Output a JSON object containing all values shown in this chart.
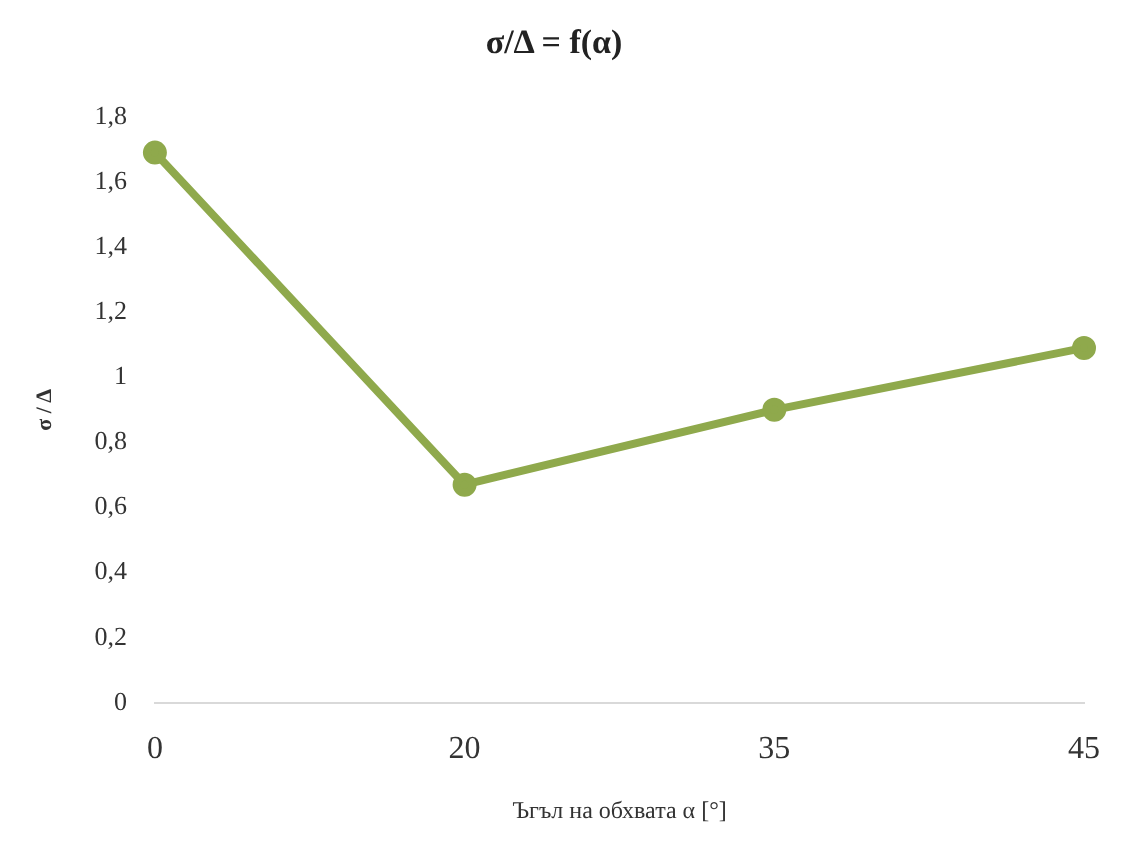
{
  "chart_data": {
    "type": "line",
    "title": "σ/Δ = f(α)",
    "xlabel": "Ъгъл на обхвата α [°]",
    "ylabel": "σ / Δ",
    "categories": [
      "0",
      "20",
      "35",
      "45"
    ],
    "series": [
      {
        "color": "#8fa94c",
        "values": [
          1.69,
          0.67,
          0.9,
          1.09
        ]
      }
    ],
    "ylim": [
      0,
      1.8
    ],
    "yticks": [
      0,
      {
        "value": 0.2,
        "label": "0,2"
      },
      {
        "value": 0.4,
        "label": "0,4"
      },
      {
        "value": 0.6,
        "label": "0,6"
      },
      {
        "value": 0.8,
        "label": "0,8"
      },
      1,
      {
        "value": 1.2,
        "label": "1,2"
      },
      {
        "value": 1.4,
        "label": "1,4"
      },
      {
        "value": 1.6,
        "label": "1,6"
      },
      {
        "value": 1.8,
        "label": "1,8"
      }
    ],
    "grid": false,
    "legend": false,
    "marker": "circle",
    "line_style": "solid"
  }
}
